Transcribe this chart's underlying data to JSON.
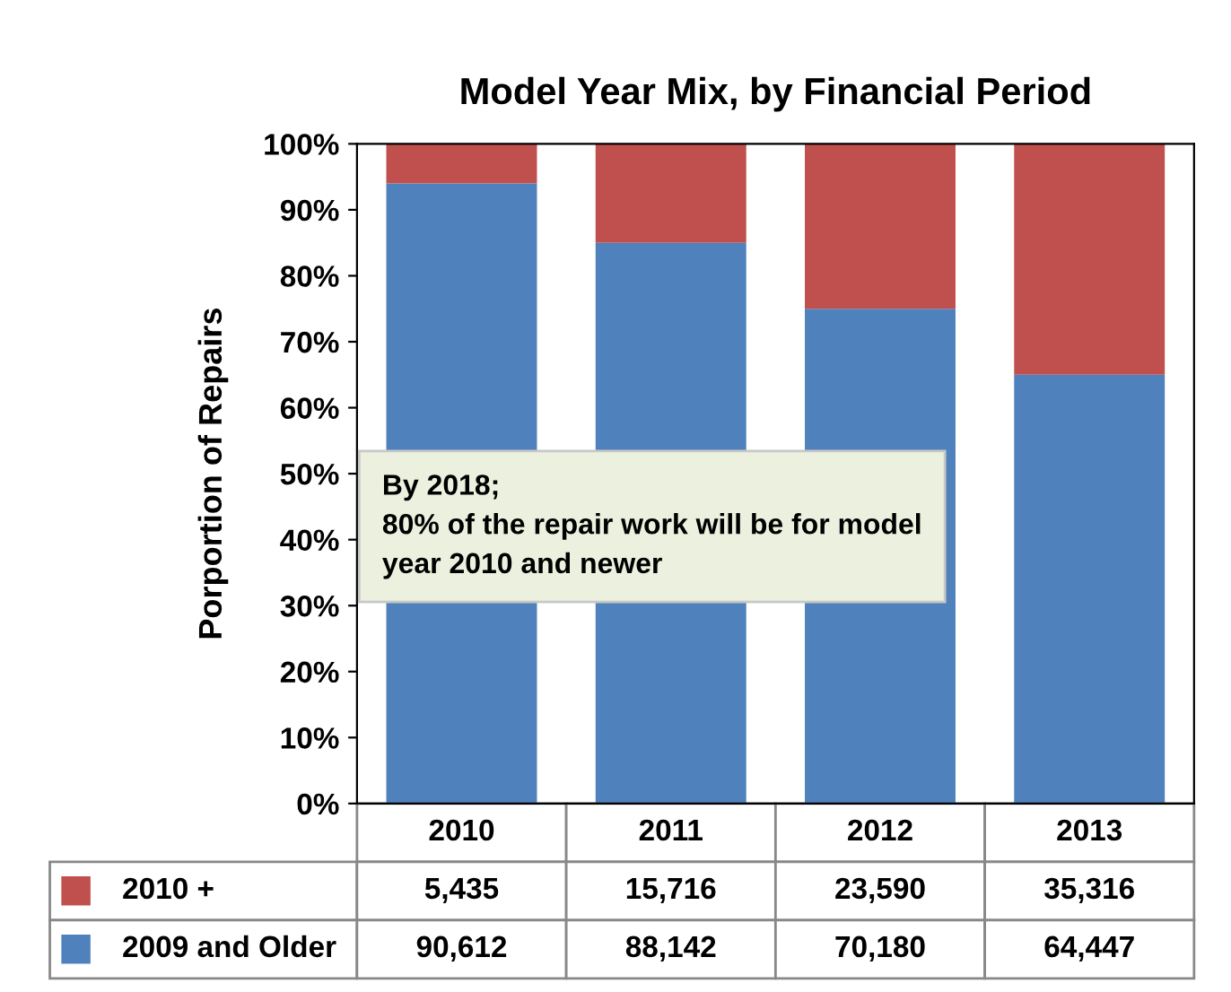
{
  "chart_data": {
    "type": "bar",
    "title": "Model Year Mix, by Financial Period",
    "ylabel": "Porportion of Repairs",
    "stacked": true,
    "categories": [
      "2010",
      "2011",
      "2012",
      "2013"
    ],
    "series": [
      {
        "name": "2009 and Older",
        "color": "#4f81bd",
        "values": [
          94,
          85,
          75,
          65
        ]
      },
      {
        "name": "2010 +",
        "color": "#c0504d",
        "values": [
          6,
          15,
          25,
          35
        ]
      }
    ],
    "ylim": [
      0,
      100
    ],
    "yticks": [
      {
        "value": 0,
        "label": "0%"
      },
      {
        "value": 10,
        "label": "10%"
      },
      {
        "value": 20,
        "label": "20%"
      },
      {
        "value": 30,
        "label": "30%"
      },
      {
        "value": 40,
        "label": "40%"
      },
      {
        "value": 50,
        "label": "50%"
      },
      {
        "value": 60,
        "label": "60%"
      },
      {
        "value": 70,
        "label": "70%"
      },
      {
        "value": 80,
        "label": "80%"
      },
      {
        "value": 90,
        "label": "90%"
      },
      {
        "value": 100,
        "label": "100%"
      }
    ],
    "annotations": [
      "By 2018;\n80% of the repair work will be for model\nyear 2010 and newer",
      "5,435",
      "15,716",
      "23,590",
      "35,316",
      "90,612",
      "88,142",
      "70,180",
      "64,447"
    ],
    "grid": false,
    "legend": "bottom"
  }
}
